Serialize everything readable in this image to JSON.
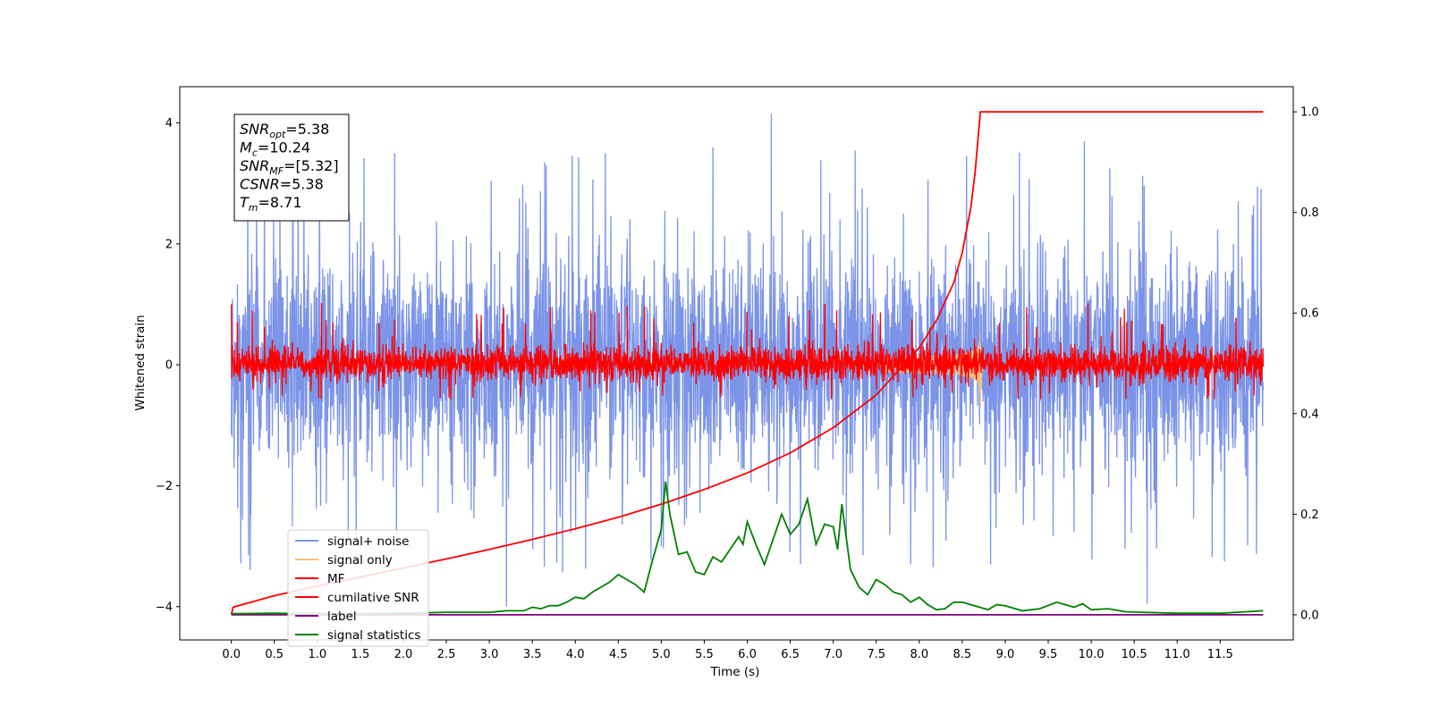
{
  "chart_data": {
    "type": "line",
    "xlabel": "Time (s)",
    "ylabel": "Whitened strain",
    "xlim": [
      -0.6,
      12.35
    ],
    "ylim": [
      -4.55,
      4.6
    ],
    "ylim_right": [
      -0.05,
      1.05
    ],
    "x_ticks": [
      "0.0",
      "0.5",
      "1.0",
      "1.5",
      "2.0",
      "2.5",
      "3.0",
      "3.5",
      "4.0",
      "4.5",
      "5.0",
      "5.5",
      "6.0",
      "6.5",
      "7.0",
      "7.5",
      "8.0",
      "8.5",
      "9.0",
      "9.5",
      "10.0",
      "10.5",
      "11.0",
      "11.5"
    ],
    "y_ticks": [
      "−4",
      "−2",
      "0",
      "2",
      "4"
    ],
    "y_ticks_right": [
      "0.0",
      "0.2",
      "0.4",
      "0.6",
      "0.8",
      "1.0"
    ],
    "grid": false,
    "legend_placement": "lower left",
    "info_box": [
      {
        "main": "SNR",
        "sub": "opt",
        "value": "=5.38"
      },
      {
        "main": "M",
        "sub": "c",
        "value": "=10.24"
      },
      {
        "main": "SNR",
        "sub": "MF",
        "value": "=[5.32]"
      },
      {
        "main": "CSNR",
        "sub": "",
        "value": "=5.38"
      },
      {
        "main": "T",
        "sub": "m",
        "value": "=8.71"
      }
    ],
    "series": [
      {
        "name": "signal+ noise",
        "color": "#7b94e8",
        "axis": "left",
        "x_range": [
          0.0,
          12.0
        ],
        "band_core": [
          -1.25,
          1.35
        ],
        "peaks": [
          {
            "x": 6.28,
            "y": 4.15
          },
          {
            "x": 9.92,
            "y": 3.7
          },
          {
            "x": 1.9,
            "y": 3.5
          },
          {
            "x": 5.6,
            "y": 3.6
          },
          {
            "x": 8.55,
            "y": 3.45
          },
          {
            "x": 4.35,
            "y": 3.5
          },
          {
            "x": 3.2,
            "y": -4.0
          },
          {
            "x": 10.65,
            "y": -3.95
          },
          {
            "x": 0.2,
            "y": -3.15
          },
          {
            "x": 5.0,
            "y": -3.0
          },
          {
            "x": 11.55,
            "y": -3.25
          },
          {
            "x": 7.9,
            "y": -3.3
          }
        ]
      },
      {
        "name": "signal only",
        "color": "#f5c27a",
        "axis": "left",
        "chirp": {
          "start": 7.6,
          "merger": 8.71,
          "peak_amplitude": 0.75
        }
      },
      {
        "name": "MF",
        "color": "#ff0000",
        "axis": "left",
        "x_range": [
          0.0,
          12.0
        ],
        "band_core": [
          -0.25,
          0.3
        ],
        "start_spike": 1.0
      },
      {
        "name": "cumilative SNR",
        "color": "#ff0000",
        "axis": "right",
        "x": [
          0.0,
          0.02,
          0.5,
          1.0,
          1.5,
          2.0,
          2.5,
          3.0,
          3.5,
          4.0,
          4.5,
          5.0,
          5.5,
          6.0,
          6.5,
          7.0,
          7.5,
          8.0,
          8.2,
          8.4,
          8.5,
          8.6,
          8.65,
          8.71,
          9.0,
          10.0,
          11.0,
          12.0
        ],
        "y": [
          0.0,
          0.015,
          0.038,
          0.057,
          0.075,
          0.093,
          0.111,
          0.13,
          0.15,
          0.171,
          0.194,
          0.22,
          0.249,
          0.282,
          0.322,
          0.372,
          0.437,
          0.531,
          0.585,
          0.66,
          0.72,
          0.81,
          0.88,
          1.0,
          1.0,
          1.0,
          1.0,
          1.0
        ]
      },
      {
        "name": "label",
        "color": "#800080",
        "axis": "right",
        "x": [
          0.0,
          12.0
        ],
        "y": [
          0.0,
          0.0
        ]
      },
      {
        "name": "signal statistics",
        "color": "#008000",
        "axis": "right",
        "x": [
          0.0,
          0.5,
          1.0,
          1.5,
          2.0,
          2.5,
          3.0,
          3.2,
          3.4,
          3.5,
          3.6,
          3.7,
          3.8,
          3.9,
          4.0,
          4.1,
          4.2,
          4.3,
          4.4,
          4.5,
          4.6,
          4.7,
          4.8,
          4.9,
          5.0,
          5.05,
          5.1,
          5.2,
          5.3,
          5.4,
          5.5,
          5.6,
          5.7,
          5.8,
          5.9,
          5.95,
          6.0,
          6.1,
          6.2,
          6.3,
          6.4,
          6.5,
          6.6,
          6.7,
          6.8,
          6.9,
          7.0,
          7.05,
          7.1,
          7.2,
          7.3,
          7.4,
          7.5,
          7.6,
          7.7,
          7.8,
          7.9,
          8.0,
          8.1,
          8.2,
          8.3,
          8.4,
          8.5,
          8.6,
          8.7,
          8.8,
          8.9,
          9.0,
          9.2,
          9.4,
          9.6,
          9.8,
          9.9,
          10.0,
          10.2,
          10.4,
          10.6,
          11.0,
          11.5,
          12.0
        ],
        "y": [
          0.002,
          0.003,
          0.002,
          0.002,
          0.003,
          0.005,
          0.005,
          0.008,
          0.008,
          0.015,
          0.012,
          0.018,
          0.018,
          0.025,
          0.035,
          0.032,
          0.045,
          0.055,
          0.065,
          0.08,
          0.07,
          0.06,
          0.045,
          0.11,
          0.17,
          0.265,
          0.2,
          0.12,
          0.125,
          0.085,
          0.08,
          0.115,
          0.105,
          0.13,
          0.155,
          0.14,
          0.185,
          0.14,
          0.1,
          0.15,
          0.2,
          0.16,
          0.18,
          0.23,
          0.14,
          0.18,
          0.175,
          0.13,
          0.22,
          0.09,
          0.055,
          0.04,
          0.07,
          0.06,
          0.045,
          0.04,
          0.025,
          0.035,
          0.02,
          0.01,
          0.012,
          0.025,
          0.025,
          0.02,
          0.015,
          0.01,
          0.02,
          0.018,
          0.008,
          0.012,
          0.025,
          0.015,
          0.022,
          0.01,
          0.012,
          0.006,
          0.005,
          0.003,
          0.003,
          0.008
        ]
      }
    ]
  }
}
